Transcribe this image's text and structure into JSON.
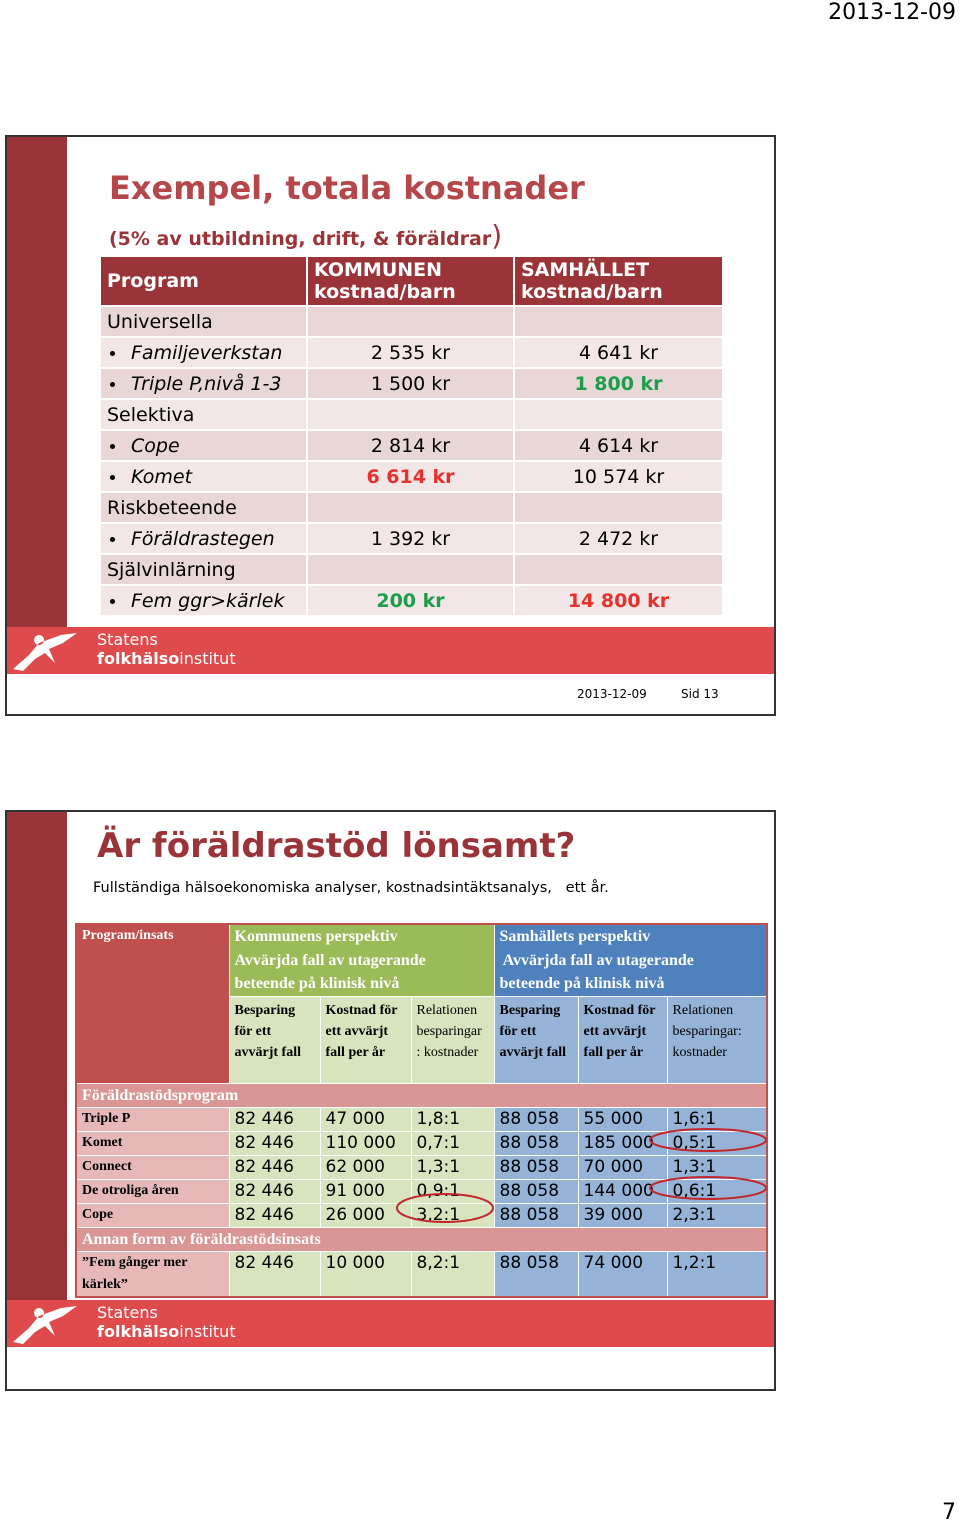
{
  "header": {
    "date": "2013-12-09"
  },
  "slide1": {
    "title": "Exempel, totala kostnader",
    "subtitle": "(5% av utbildning, drift, & föräldrar",
    "subtitle_end": ")",
    "table": {
      "header": [
        "Program",
        "KOMMUNEN kostnad/barn",
        "SAMHÄLLET kostnad/barn"
      ],
      "rows": [
        {
          "label": "Universella"
        },
        {
          "label": "Familjeverkstan",
          "values": [
            "2 535 kr",
            "4 641 kr"
          ]
        },
        {
          "label": "Triple P,nivå 1-3",
          "values": [
            "1 500 kr",
            "1 800 kr"
          ],
          "colors": [
            null,
            "#1a9e4a"
          ]
        },
        {
          "label": "Selektiva"
        },
        {
          "label": "Cope",
          "values": [
            "2 814 kr",
            "4 614 kr"
          ]
        },
        {
          "label": "Komet",
          "values": [
            "6 614 kr",
            "10 574 kr"
          ],
          "colors": [
            "#e8302c",
            null
          ]
        },
        {
          "label": "Riskbeteende"
        },
        {
          "label": "Föräldrastegen",
          "values": [
            "1 392 kr",
            "2 472 kr"
          ]
        },
        {
          "label": "Självinlärning"
        },
        {
          "label": "Fem ggr>kärlek",
          "values": [
            "200 kr",
            "14 800 kr"
          ],
          "colors": [
            "#1a9e4a",
            "#e8302c"
          ]
        }
      ]
    },
    "logo": {
      "line1": "Statens",
      "line2a": "folkhälso",
      "line2b": "institut"
    },
    "footer": {
      "date": "2013-12-09",
      "page": "Sid 13"
    }
  },
  "slide2": {
    "title": "Är föräldrastöd lönsamt?",
    "subtitle": "Fullständiga hälsoekonomiska analyser, kostnadsintäktsanalys,   ett år.",
    "table": {
      "corner": "Program/insats",
      "groups": [
        [
          "Kommunens perspektiv",
          "Avvärjda fall av utagerande",
          "beteende på klinisk nivå"
        ],
        [
          "Samhällets perspektiv",
          " Avvärjda fall av utagerande",
          "beteende på klinisk nivå"
        ]
      ],
      "subheaders": [
        "Besparing för ett avvärjt fall",
        "Kostnad för ett avvärjt fall  per år",
        "Relationen besparingar : kostnader",
        "Besparing för ett avvärjt fall",
        "Kostnad för ett avvärjt fall per år",
        "Relationen besparingar: kostnader"
      ],
      "sections": [
        {
          "title": "Föräldrastödsprogram",
          "rows": [
            {
              "label": "Triple P",
              "values": [
                "82 446",
                "47 000",
                "1,8:1",
                "88 058",
                "55 000",
                "1,6:1"
              ]
            },
            {
              "label": "Komet",
              "values": [
                "82 446",
                "110 000",
                "0,7:1",
                "88 058",
                "185 000",
                "0,5:1"
              ]
            },
            {
              "label": "Connect",
              "values": [
                "82 446",
                "62 000",
                "1,3:1",
                "88 058",
                "70 000",
                "1,3:1"
              ]
            },
            {
              "label": "De otroliga åren",
              "values": [
                "82 446",
                "91 000",
                "0,9:1",
                "88 058",
                "144 000",
                "0,6:1"
              ]
            },
            {
              "label": "Cope",
              "values": [
                "82 446",
                "26 000",
                "3,2:1",
                "88 058",
                "39 000",
                "2,3:1"
              ]
            }
          ]
        },
        {
          "title": "Annan form av föräldrastödsinsats",
          "rows": [
            {
              "label": "”Fem gånger mer kärlek”",
              "values": [
                "82 446",
                "10 000",
                "8,2:1",
                "88 058",
                "74 000",
                "1,2:1"
              ]
            }
          ]
        }
      ]
    },
    "logo": {
      "line1": "Statens",
      "line2a": "folkhälso",
      "line2b": "institut"
    }
  },
  "page_number": "7"
}
